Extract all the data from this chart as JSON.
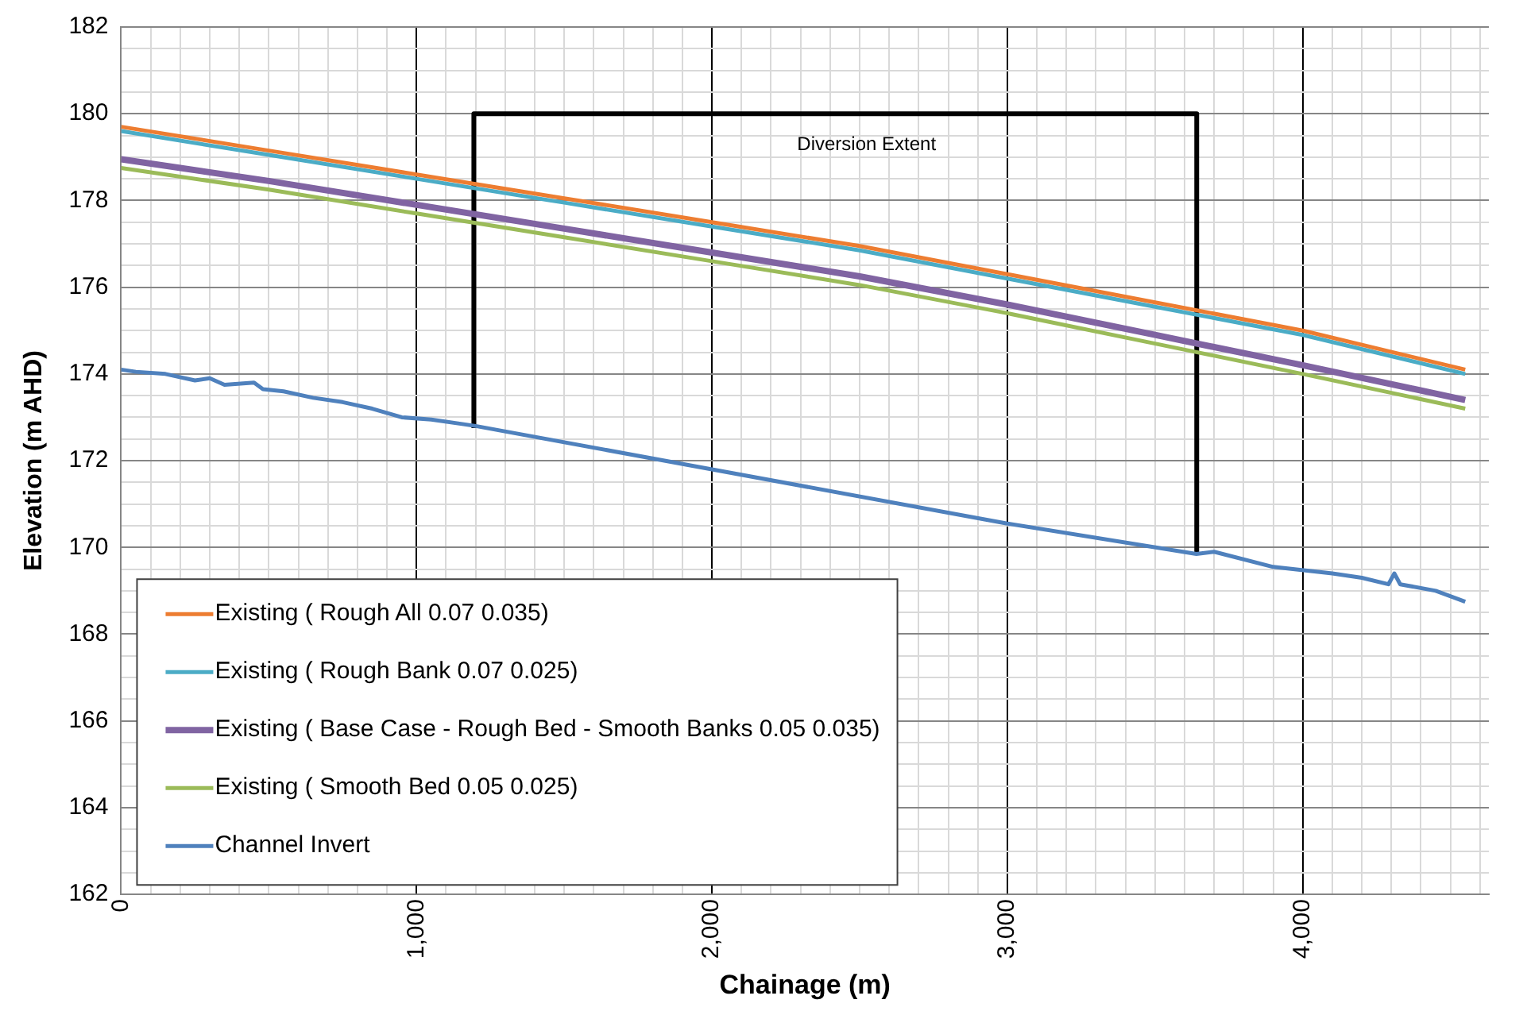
{
  "chart_data": {
    "type": "line",
    "xlabel": "Chainage (m)",
    "ylabel": "Elevation (m AHD)",
    "xlim": [
      0,
      4630
    ],
    "xticks": [
      {
        "value": 0,
        "label": "0"
      },
      {
        "value": 100,
        "label": null
      },
      {
        "value": 200,
        "label": null
      },
      {
        "value": 300,
        "label": null
      },
      {
        "value": 400,
        "label": null
      },
      {
        "value": 500,
        "label": null
      },
      {
        "value": 600,
        "label": null
      },
      {
        "value": 700,
        "label": null
      },
      {
        "value": 800,
        "label": null
      },
      {
        "value": 900,
        "label": null
      },
      {
        "value": 1000,
        "label": "1,000"
      },
      {
        "value": 1100,
        "label": null
      },
      {
        "value": 1200,
        "label": null
      },
      {
        "value": 1300,
        "label": null
      },
      {
        "value": 1400,
        "label": null
      },
      {
        "value": 1500,
        "label": null
      },
      {
        "value": 1600,
        "label": null
      },
      {
        "value": 1700,
        "label": null
      },
      {
        "value": 1800,
        "label": null
      },
      {
        "value": 1900,
        "label": null
      },
      {
        "value": 2000,
        "label": "2,000"
      },
      {
        "value": 2100,
        "label": null
      },
      {
        "value": 2200,
        "label": null
      },
      {
        "value": 2300,
        "label": null
      },
      {
        "value": 2400,
        "label": null
      },
      {
        "value": 2500,
        "label": null
      },
      {
        "value": 2600,
        "label": null
      },
      {
        "value": 2700,
        "label": null
      },
      {
        "value": 2800,
        "label": null
      },
      {
        "value": 2900,
        "label": null
      },
      {
        "value": 3000,
        "label": "3,000"
      },
      {
        "value": 3100,
        "label": null
      },
      {
        "value": 3200,
        "label": null
      },
      {
        "value": 3300,
        "label": null
      },
      {
        "value": 3400,
        "label": null
      },
      {
        "value": 3500,
        "label": null
      },
      {
        "value": 3600,
        "label": null
      },
      {
        "value": 3700,
        "label": null
      },
      {
        "value": 3800,
        "label": null
      },
      {
        "value": 3900,
        "label": null
      },
      {
        "value": 4000,
        "label": "4,000"
      },
      {
        "value": 4100,
        "label": null
      },
      {
        "value": 4200,
        "label": null
      },
      {
        "value": 4300,
        "label": null
      },
      {
        "value": 4400,
        "label": null
      },
      {
        "value": 4500,
        "label": null
      },
      {
        "value": 4600,
        "label": null
      }
    ],
    "ylim": [
      162,
      182
    ],
    "yticks": [
      162,
      {
        "value": 162.5,
        "label": null
      },
      {
        "value": 163,
        "label": null
      },
      {
        "value": 163.5,
        "label": null
      },
      164,
      {
        "value": 164.5,
        "label": null
      },
      {
        "value": 165,
        "label": null
      },
      {
        "value": 165.5,
        "label": null
      },
      166,
      {
        "value": 166.5,
        "label": null
      },
      {
        "value": 167,
        "label": null
      },
      {
        "value": 167.5,
        "label": null
      },
      168,
      {
        "value": 168.5,
        "label": null
      },
      {
        "value": 169,
        "label": null
      },
      {
        "value": 169.5,
        "label": null
      },
      170,
      {
        "value": 170.5,
        "label": null
      },
      {
        "value": 171,
        "label": null
      },
      {
        "value": 171.5,
        "label": null
      },
      172,
      {
        "value": 172.5,
        "label": null
      },
      {
        "value": 173,
        "label": null
      },
      {
        "value": 173.5,
        "label": null
      },
      174,
      {
        "value": 174.5,
        "label": null
      },
      {
        "value": 175,
        "label": null
      },
      {
        "value": 175.5,
        "label": null
      },
      176,
      {
        "value": 176.5,
        "label": null
      },
      {
        "value": 177,
        "label": null
      },
      {
        "value": 177.5,
        "label": null
      },
      178,
      {
        "value": 178.5,
        "label": null
      },
      {
        "value": 179,
        "label": null
      },
      {
        "value": 179.5,
        "label": null
      },
      180,
      {
        "value": 180.5,
        "label": null
      },
      {
        "value": 181,
        "label": null
      },
      {
        "value": 181.5,
        "label": null
      },
      182
    ],
    "grid": true,
    "legend": "bottom left",
    "marker": "none",
    "line_style": "solid",
    "annotations": [
      "Diversion Extent"
    ],
    "series": [
      {
        "name": "Existing ( Rough All 0.07 0.035)",
        "color": "#ed7d31",
        "x": [
          0,
          500,
          1000,
          1500,
          2000,
          2500,
          3000,
          3500,
          4000,
          4550
        ],
        "values": [
          179.7,
          179.15,
          178.6,
          178.05,
          177.5,
          176.95,
          176.3,
          175.65,
          175.0,
          174.1
        ]
      },
      {
        "name": "Existing ( Rough Bank 0.07 0.025)",
        "color": "#4bacc6",
        "x": [
          0,
          500,
          1000,
          1500,
          2000,
          2500,
          3000,
          3500,
          4000,
          4550
        ],
        "values": [
          179.6,
          179.05,
          178.5,
          177.95,
          177.4,
          176.85,
          176.2,
          175.55,
          174.9,
          174.0
        ]
      },
      {
        "name": "Existing ( Base Case - Rough Bed - Smooth Banks 0.05 0.035)",
        "color": "#8064a2",
        "x": [
          0,
          500,
          1000,
          1500,
          2000,
          2500,
          3000,
          3500,
          4000,
          4550
        ],
        "values": [
          178.95,
          178.45,
          177.9,
          177.35,
          176.8,
          176.25,
          175.6,
          174.9,
          174.2,
          173.4
        ]
      },
      {
        "name": "Existing ( Smooth Bed 0.05 0.025)",
        "color": "#9bbb59",
        "x": [
          0,
          500,
          1000,
          1500,
          2000,
          2500,
          3000,
          3500,
          4000,
          4550
        ],
        "values": [
          178.75,
          178.25,
          177.7,
          177.15,
          176.6,
          176.05,
          175.4,
          174.7,
          174.0,
          173.2
        ]
      },
      {
        "name": "Channel Invert",
        "color": "#4f81bd",
        "x": [
          0,
          50,
          150,
          250,
          300,
          350,
          450,
          480,
          550,
          650,
          750,
          850,
          950,
          1050,
          1150,
          1200,
          2000,
          3000,
          3640,
          3700,
          3900,
          4100,
          4200,
          4290,
          4310,
          4330,
          4450,
          4550
        ],
        "values": [
          174.1,
          174.05,
          174.0,
          173.85,
          173.9,
          173.75,
          173.8,
          173.65,
          173.6,
          173.45,
          173.35,
          173.2,
          173.0,
          172.95,
          172.85,
          172.8,
          171.8,
          170.55,
          169.85,
          169.9,
          169.55,
          169.4,
          169.3,
          169.15,
          169.4,
          169.15,
          169.0,
          168.75
        ]
      },
      {
        "color": "#000000",
        "x": [
          1194,
          1194,
          3641,
          3641
        ],
        "values": [
          172.75,
          180,
          180,
          169.9
        ]
      }
    ]
  }
}
